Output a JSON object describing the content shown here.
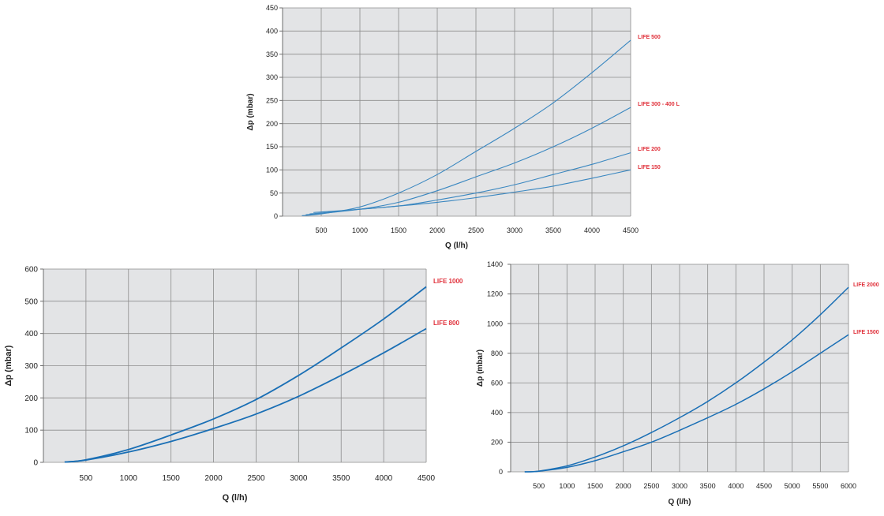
{
  "chart_data": [
    {
      "type": "line",
      "xlabel": "Q (l/h)",
      "ylabel": "Δp (mbar)",
      "xlim": [
        0,
        4500
      ],
      "ylim": [
        0,
        450
      ],
      "xticks": [
        500,
        1000,
        1500,
        2000,
        2500,
        3000,
        3500,
        4000,
        4500
      ],
      "yticks": [
        0,
        50,
        100,
        150,
        200,
        250,
        300,
        350,
        400,
        450
      ],
      "grid": true,
      "line_color": "#3a87c0",
      "label_color": "#e0303a",
      "series": [
        {
          "name": "LIFE 500",
          "x": [
            250,
            500,
            1000,
            1500,
            2000,
            2500,
            3000,
            3500,
            4000,
            4500
          ],
          "y": [
            1,
            5,
            20,
            50,
            90,
            140,
            190,
            245,
            310,
            380
          ]
        },
        {
          "name": "LIFE 300 - 400 L",
          "x": [
            300,
            500,
            1000,
            1500,
            2000,
            2500,
            3000,
            3500,
            4000,
            4500
          ],
          "y": [
            3,
            6,
            15,
            30,
            55,
            85,
            115,
            150,
            190,
            235
          ]
        },
        {
          "name": "LIFE 200",
          "x": [
            350,
            500,
            1000,
            1500,
            2000,
            2500,
            3000,
            3500,
            4000,
            4500
          ],
          "y": [
            5,
            7,
            15,
            22,
            35,
            50,
            68,
            90,
            112,
            137
          ]
        },
        {
          "name": "LIFE 150",
          "x": [
            400,
            500,
            1000,
            1500,
            2000,
            2500,
            3000,
            3500,
            4000,
            4500
          ],
          "y": [
            8,
            9,
            15,
            22,
            30,
            40,
            52,
            65,
            82,
            100
          ]
        }
      ]
    },
    {
      "type": "line",
      "xlabel": "Q (l/h)",
      "ylabel": "Δp (mbar)",
      "xlim": [
        0,
        4500
      ],
      "ylim": [
        0,
        600
      ],
      "xticks": [
        500,
        1000,
        1500,
        2000,
        2500,
        3000,
        3500,
        4000,
        4500
      ],
      "yticks": [
        0,
        100,
        200,
        300,
        400,
        500,
        600
      ],
      "grid": true,
      "line_color": "#1a6fb5",
      "label_color": "#e0303a",
      "series": [
        {
          "name": "LIFE 1000",
          "x": [
            250,
            500,
            1000,
            1500,
            2000,
            2500,
            3000,
            3500,
            4000,
            4500
          ],
          "y": [
            1,
            8,
            40,
            85,
            135,
            195,
            270,
            355,
            445,
            545
          ]
        },
        {
          "name": "LIFE 800",
          "x": [
            250,
            500,
            1000,
            1500,
            2000,
            2500,
            3000,
            3500,
            4000,
            4500
          ],
          "y": [
            1,
            7,
            32,
            65,
            105,
            150,
            205,
            270,
            340,
            415
          ]
        }
      ]
    },
    {
      "type": "line",
      "xlabel": "Q (l/h)",
      "ylabel": "Δp (mbar)",
      "xlim": [
        0,
        6000
      ],
      "ylim": [
        0,
        1400
      ],
      "xticks": [
        500,
        1000,
        1500,
        2000,
        2500,
        3000,
        3500,
        4000,
        4500,
        5000,
        5500,
        6000
      ],
      "yticks": [
        0,
        200,
        400,
        600,
        800,
        1000,
        1200,
        1400
      ],
      "grid": true,
      "line_color": "#1a6fb5",
      "label_color": "#e0303a",
      "series": [
        {
          "name": "LIFE 2000",
          "x": [
            250,
            500,
            1000,
            1500,
            2000,
            2500,
            3000,
            3500,
            4000,
            4500,
            5000,
            5500,
            6000
          ],
          "y": [
            0,
            5,
            40,
            100,
            175,
            265,
            365,
            475,
            600,
            740,
            890,
            1060,
            1245
          ]
        },
        {
          "name": "LIFE 1500",
          "x": [
            250,
            500,
            1000,
            1500,
            2000,
            2500,
            3000,
            3500,
            4000,
            4500,
            5000,
            5500,
            6000
          ],
          "y": [
            0,
            4,
            30,
            75,
            135,
            200,
            280,
            365,
            455,
            560,
            675,
            800,
            925
          ]
        }
      ]
    }
  ]
}
